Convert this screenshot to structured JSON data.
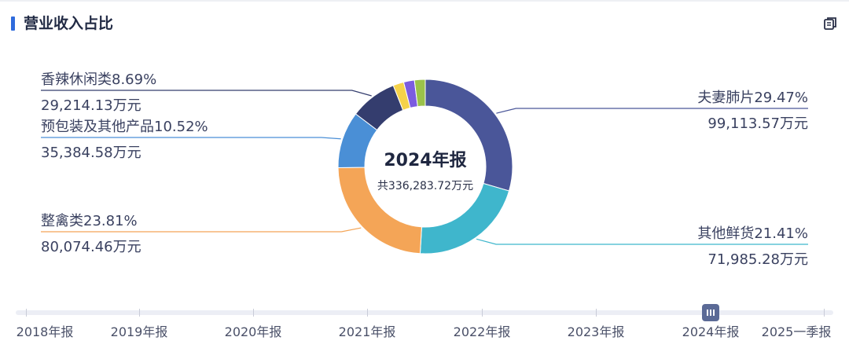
{
  "header": {
    "title": "营业收入占比",
    "copy_icon": "copy-icon"
  },
  "chart_data": {
    "type": "pie",
    "donut": true,
    "center_title": "2024年报",
    "center_subtitle": "共336,283.72万元",
    "slices": [
      {
        "name": "夫妻肺片",
        "percent_label": "29.47%",
        "value_label": "99,113.57万元",
        "value": 99113.57,
        "color": "#4a5699"
      },
      {
        "name": "其他鲜货",
        "percent_label": "21.41%",
        "value_label": "71,985.28万元",
        "value": 71985.28,
        "color": "#3fb6cc"
      },
      {
        "name": "整禽类",
        "percent_label": "23.81%",
        "value_label": "80,074.46万元",
        "value": 80074.46,
        "color": "#f4a557"
      },
      {
        "name": "预包装及其他产品",
        "percent_label": "10.52%",
        "value_label": "35,384.58万元",
        "value": 35384.58,
        "color": "#4a8fd6"
      },
      {
        "name": "香辣休闲类",
        "percent_label": "8.69%",
        "value_label": "29,214.13万元",
        "value": 29214.13,
        "color": "#343d6e"
      },
      {
        "name": "",
        "percent_label": "",
        "value_label": "",
        "value": 6700,
        "color": "#f5d24a"
      },
      {
        "name": "",
        "percent_label": "",
        "value_label": "",
        "value": 6700,
        "color": "#7b5ce0"
      },
      {
        "name": "",
        "percent_label": "",
        "value_label": "",
        "value": 6700,
        "color": "#9bc24a"
      }
    ]
  },
  "timeline": {
    "labels": [
      "2018年报",
      "2019年报",
      "2020年报",
      "2021年报",
      "2022年报",
      "2023年报",
      "2024年报",
      "2025一季报"
    ],
    "selected": "2024年报"
  }
}
